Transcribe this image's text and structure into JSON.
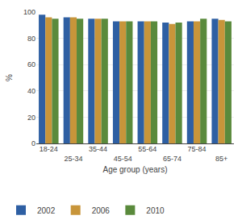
{
  "chart_data": {
    "type": "bar",
    "categories": [
      "18-24",
      "25-34",
      "35-44",
      "45-54",
      "55-64",
      "65-74",
      "75-84",
      "85+"
    ],
    "series": [
      {
        "name": "2002",
        "color": "#2E5FA3",
        "values": [
          98,
          96,
          95,
          93,
          93,
          92,
          93,
          95
        ]
      },
      {
        "name": "2006",
        "color": "#C8953A",
        "values": [
          96,
          96,
          95,
          93,
          93,
          91,
          93,
          94
        ]
      },
      {
        "name": "2010",
        "color": "#5A8A3C",
        "values": [
          95,
          95,
          95,
          93,
          93,
          92,
          95,
          93
        ]
      }
    ],
    "xlabel": "Age group (years)",
    "ylabel": "%",
    "ylim": [
      0,
      100
    ],
    "yticks": [
      0,
      20,
      40,
      60,
      80,
      100
    ],
    "grid": true,
    "legend": "bottom"
  }
}
